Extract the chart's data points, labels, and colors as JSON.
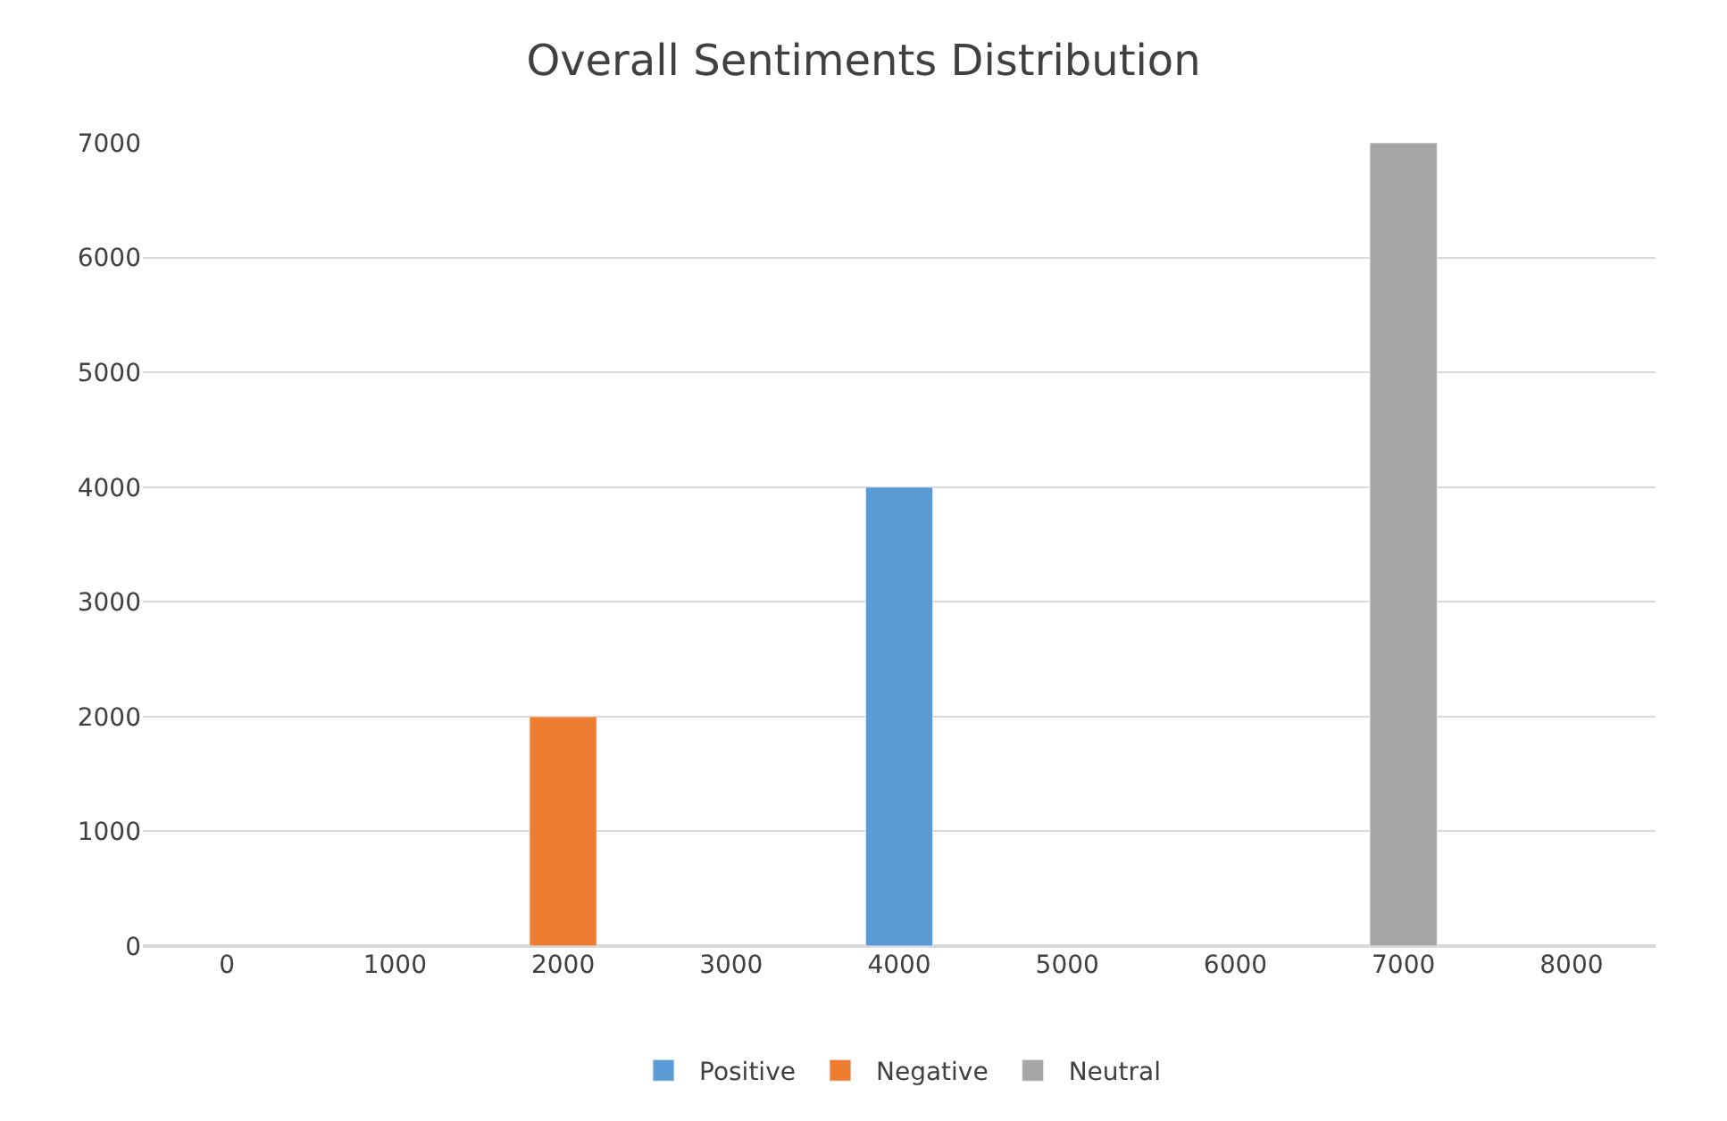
{
  "chart_data": {
    "type": "bar",
    "title": "Overall Sentiments Distribution",
    "categories": [
      "0",
      "1000",
      "2000",
      "3000",
      "4000",
      "5000",
      "6000",
      "7000",
      "8000"
    ],
    "series": [
      {
        "name": "Positive",
        "color": "#5b9bd5",
        "values": [
          null,
          null,
          null,
          null,
          4000,
          null,
          null,
          null,
          null
        ]
      },
      {
        "name": "Negative",
        "color": "#ed7d31",
        "values": [
          null,
          null,
          2000,
          null,
          null,
          null,
          null,
          null,
          null
        ]
      },
      {
        "name": "Neutral",
        "color": "#a5a5a5",
        "values": [
          null,
          null,
          null,
          null,
          null,
          null,
          null,
          7000,
          null
        ]
      }
    ],
    "ylim": [
      0,
      7000
    ],
    "yticks": [
      0,
      1000,
      2000,
      3000,
      4000,
      5000,
      6000,
      7000
    ],
    "grid": "y",
    "legend": "bottom"
  }
}
